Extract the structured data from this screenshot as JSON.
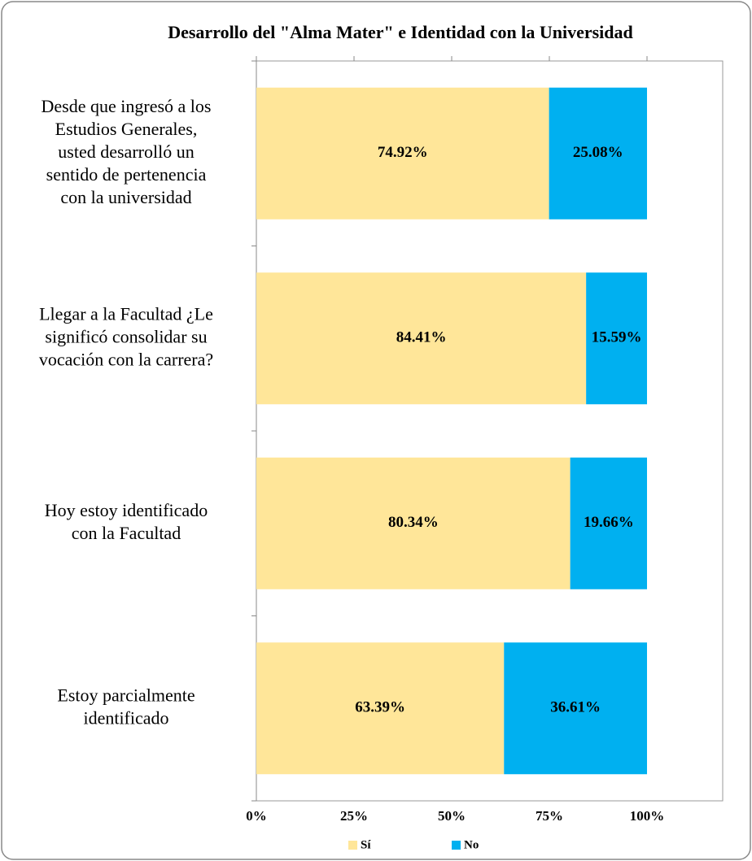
{
  "chart_data": {
    "type": "stacked_bar_horizontal",
    "title": "Desarrollo del \"Alma Mater\" e  Identidad con la Universidad",
    "categories": [
      "Desde que ingresó a los\nEstudios Generales,\nusted desarrolló un\nsentido de pertenencia\ncon la universidad",
      "Llegar a la Facultad ¿Le\nsignificó consolidar su\nvocación con la carrera?",
      "Hoy estoy identificado\ncon la Facultad",
      "Estoy parcialmente\nidentificado"
    ],
    "series": [
      {
        "name": "Sí",
        "color": "#FFE699",
        "values": [
          74.92,
          84.41,
          80.34,
          63.39
        ],
        "value_labels": [
          "74.92%",
          "84.41%",
          "80.34%",
          "63.39%"
        ]
      },
      {
        "name": "No",
        "color": "#00B0F0",
        "values": [
          25.08,
          15.59,
          19.66,
          36.61
        ],
        "value_labels": [
          "25.08%",
          "15.59%",
          "19.66%",
          "36.61%"
        ]
      }
    ],
    "xlim": [
      0,
      100
    ],
    "xticks": [
      {
        "value": 0,
        "label": "0%"
      },
      {
        "value": 25,
        "label": "25%"
      },
      {
        "value": 50,
        "label": "50%"
      },
      {
        "value": 75,
        "label": "75%"
      },
      {
        "value": 100,
        "label": "100%"
      }
    ],
    "legend": "bottom"
  }
}
